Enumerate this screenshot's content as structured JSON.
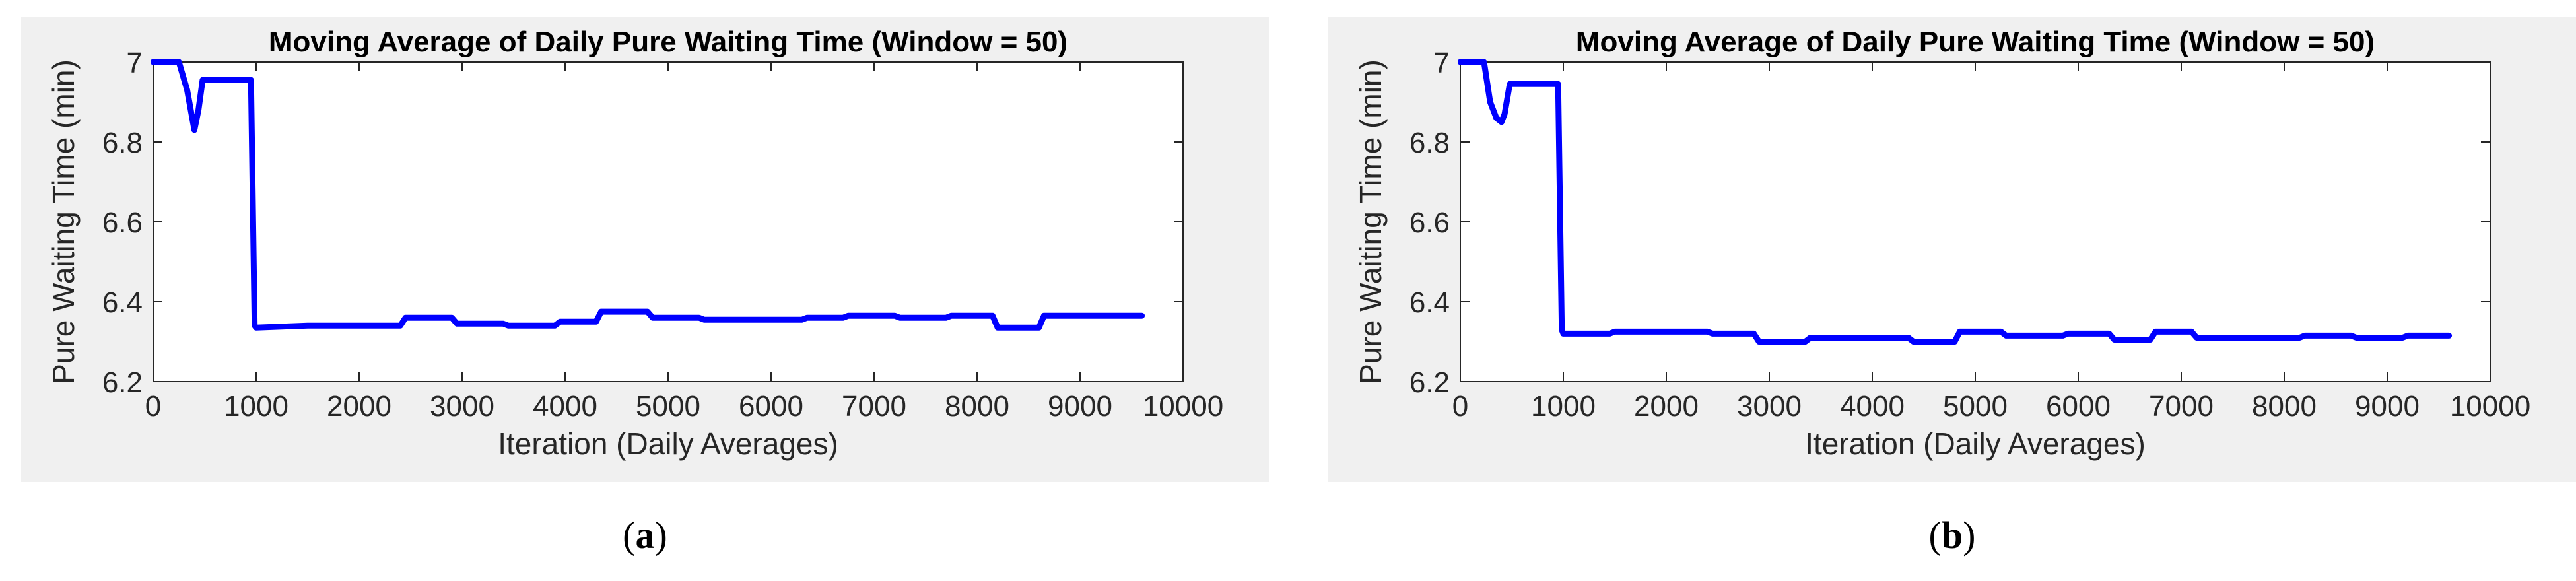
{
  "chart_data": [
    {
      "type": "line",
      "caption": "a",
      "title": "Moving Average of Daily Pure Waiting Time (Window = 50)",
      "xlabel": "Iteration (Daily Averages)",
      "ylabel": "Pure Waiting Time (min)",
      "xlim": [
        0,
        10000
      ],
      "ylim": [
        6.2,
        7.0
      ],
      "xticks": [
        0,
        1000,
        2000,
        3000,
        4000,
        5000,
        6000,
        7000,
        8000,
        9000,
        10000
      ],
      "yticks": [
        6.2,
        6.4,
        6.6,
        6.8,
        7
      ],
      "xtick_labels": [
        "0",
        "1000",
        "2000",
        "3000",
        "4000",
        "5000",
        "6000",
        "7000",
        "8000",
        "9000",
        "10000"
      ],
      "ytick_labels": [
        "6.2",
        "6.4",
        "6.6",
        "6.8",
        "7"
      ],
      "grid": true,
      "color": "#0000ff",
      "series": [
        {
          "x": [
            0,
            250,
            330,
            400,
            440,
            480,
            950,
            985,
            1000,
            1500,
            2400,
            2450,
            2900,
            2950,
            3400,
            3450,
            3900,
            3950,
            4300,
            4350,
            4800,
            4850,
            5300,
            5350,
            6300,
            6350,
            6700,
            6750,
            7200,
            7250,
            7700,
            7750,
            8150,
            8200,
            8600,
            8650,
            9600
          ],
          "y": [
            7.0,
            7.0,
            6.93,
            6.83,
            6.88,
            6.955,
            6.955,
            6.34,
            6.335,
            6.34,
            6.34,
            6.36,
            6.36,
            6.345,
            6.345,
            6.34,
            6.34,
            6.35,
            6.35,
            6.375,
            6.375,
            6.36,
            6.36,
            6.355,
            6.355,
            6.36,
            6.36,
            6.365,
            6.365,
            6.36,
            6.36,
            6.365,
            6.365,
            6.335,
            6.335,
            6.365,
            6.365
          ]
        }
      ]
    },
    {
      "type": "line",
      "caption": "b",
      "title": "Moving Average of Daily Pure Waiting Time (Window = 50)",
      "xlabel": "Iteration (Daily Averages)",
      "ylabel": "Pure Waiting Time (min)",
      "xlim": [
        0,
        10000
      ],
      "ylim": [
        6.2,
        7.0
      ],
      "xticks": [
        0,
        1000,
        2000,
        3000,
        4000,
        5000,
        6000,
        7000,
        8000,
        9000,
        10000
      ],
      "yticks": [
        6.2,
        6.4,
        6.6,
        6.8,
        7
      ],
      "xtick_labels": [
        "0",
        "1000",
        "2000",
        "3000",
        "4000",
        "5000",
        "6000",
        "7000",
        "8000",
        "9000",
        "10000"
      ],
      "ytick_labels": [
        "6.2",
        "6.4",
        "6.6",
        "6.8",
        "7"
      ],
      "grid": true,
      "color": "#0000ff",
      "series": [
        {
          "x": [
            0,
            230,
            290,
            350,
            400,
            430,
            480,
            950,
            985,
            1000,
            1450,
            1500,
            2400,
            2450,
            2850,
            2900,
            3350,
            3400,
            4350,
            4400,
            4800,
            4850,
            5250,
            5300,
            5850,
            5900,
            6300,
            6350,
            6700,
            6750,
            7100,
            7150,
            8150,
            8200,
            8650,
            8700,
            9150,
            9200,
            9600
          ],
          "y": [
            7.0,
            7.0,
            6.9,
            6.86,
            6.85,
            6.87,
            6.945,
            6.945,
            6.33,
            6.32,
            6.32,
            6.325,
            6.325,
            6.32,
            6.32,
            6.3,
            6.3,
            6.31,
            6.31,
            6.3,
            6.3,
            6.325,
            6.325,
            6.315,
            6.315,
            6.32,
            6.32,
            6.305,
            6.305,
            6.325,
            6.325,
            6.31,
            6.31,
            6.315,
            6.315,
            6.31,
            6.31,
            6.315,
            6.315
          ]
        }
      ]
    }
  ]
}
